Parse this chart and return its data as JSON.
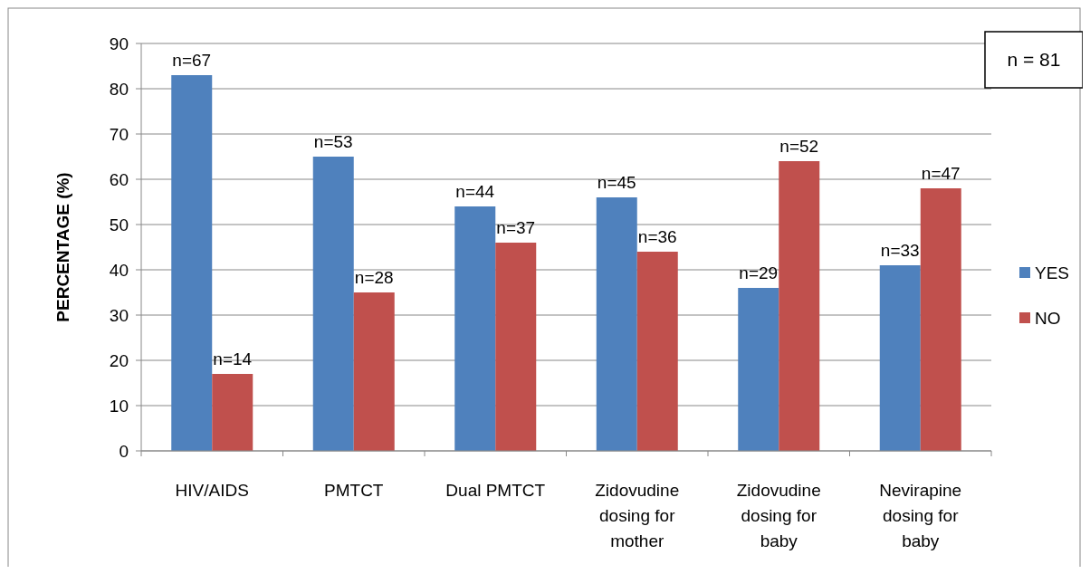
{
  "chart_data": {
    "type": "bar",
    "ylabel": "PERCENTAGE (%)",
    "categories": [
      "HIV/AIDS",
      "PMTCT",
      "Dual PMTCT",
      "Zidovudine dosing for mother",
      "Zidovudine dosing for baby",
      "Nevirapine dosing for baby"
    ],
    "series": [
      {
        "name": "YES",
        "color": "#4f81bd",
        "values": [
          83,
          65,
          54,
          56,
          36,
          41
        ]
      },
      {
        "name": "NO",
        "color": "#c0504d",
        "values": [
          17,
          35,
          46,
          44,
          64,
          58
        ]
      }
    ],
    "ylim": [
      0,
      90
    ],
    "yticks": [
      0,
      10,
      20,
      30,
      40,
      50,
      60,
      70,
      80,
      90
    ],
    "grid": "y",
    "legend": "right",
    "annotations": [
      "n = 81",
      {
        "text": "n=67",
        "x": "HIV/AIDS",
        "y": 83
      },
      {
        "text": "n=14",
        "x": "HIV/AIDS",
        "y": 17
      },
      {
        "text": "n=53",
        "x": "PMTCT",
        "y": 65
      },
      {
        "text": "n=28",
        "x": "PMTCT",
        "y": 35
      },
      {
        "text": "n=44",
        "x": "Dual PMTCT",
        "y": 54
      },
      {
        "text": "n=37",
        "x": "Dual PMTCT",
        "y": 46
      },
      {
        "text": "n=45",
        "x": "Zidovudine dosing for mother",
        "y": 56
      },
      {
        "text": "n=36",
        "x": "Zidovudine dosing for mother",
        "y": 44
      },
      {
        "text": "n=29",
        "x": "Zidovudine dosing for baby",
        "y": 36
      },
      {
        "text": "n=52",
        "x": "Zidovudine dosing for baby",
        "y": 64
      },
      {
        "text": "n=33",
        "x": "Nevirapine dosing for baby",
        "y": 41
      },
      {
        "text": "n=47",
        "x": "Nevirapine dosing for baby",
        "y": 58
      }
    ]
  }
}
